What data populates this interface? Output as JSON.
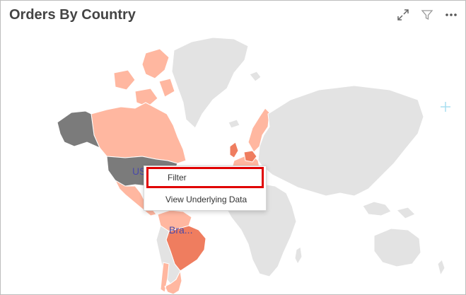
{
  "widget": {
    "title": "Orders By Country"
  },
  "toolbar": {
    "icons": [
      "expand-icon",
      "filter-icon",
      "more-icon"
    ]
  },
  "map": {
    "labels": {
      "usa": "US",
      "brazil": "Bra..."
    },
    "colors": {
      "land_default": "#e3e3e3",
      "low": "#ffb7a0",
      "mid": "#f9a08a",
      "high": "#ef7d5f",
      "selected": "#7b7b7b",
      "border": "#ffffff",
      "accent_plus": "#a8dff0"
    }
  },
  "context_menu": {
    "items": [
      {
        "label": "Filter"
      },
      {
        "label": "View Underlying Data"
      }
    ],
    "highlight_color": "#e00000"
  }
}
